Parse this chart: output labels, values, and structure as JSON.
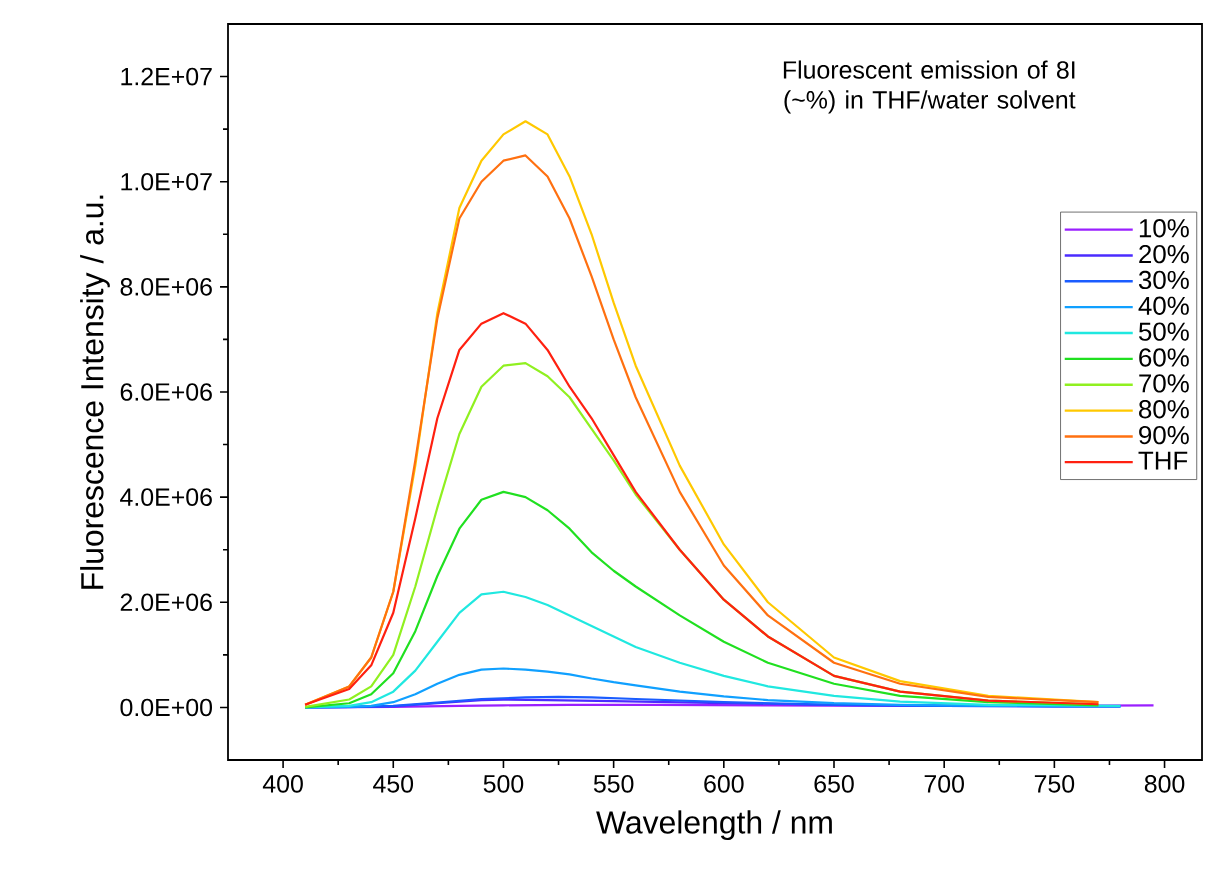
{
  "chart_data": {
    "type": "line",
    "title": "Fluorescent emission of 8I (~%) in THF/water solvent",
    "xlabel": "Wavelength / nm",
    "ylabel": "Fluorescence Intensity / a.u.",
    "xlim": [
      375,
      817
    ],
    "ylim": [
      -1000000,
      13000000
    ],
    "xticks": [
      400,
      450,
      500,
      550,
      600,
      650,
      700,
      750,
      800
    ],
    "yticks": [
      {
        "value": 0,
        "label": "0.0E+00"
      },
      {
        "value": 2000000,
        "label": "2.0E+06"
      },
      {
        "value": 4000000,
        "label": "4.0E+06"
      },
      {
        "value": 6000000,
        "label": "6.0E+06"
      },
      {
        "value": 8000000,
        "label": "8.0E+06"
      },
      {
        "value": 10000000,
        "label": "1.0E+07"
      },
      {
        "value": 12000000,
        "label": "1.2E+07"
      }
    ],
    "legend": "top right",
    "series": [
      {
        "name": "10%",
        "color": "#9a1fff",
        "x": [
          410,
          450,
          480,
          500,
          530,
          570,
          620,
          680,
          740,
          795
        ],
        "values": [
          0,
          10000,
          30000,
          40000,
          50000,
          50000,
          40000,
          30000,
          30000,
          40000
        ]
      },
      {
        "name": "20%",
        "color": "#4b2cff",
        "x": [
          410,
          450,
          470,
          490,
          500,
          520,
          550,
          600,
          650,
          700,
          750,
          780
        ],
        "values": [
          0,
          20000,
          80000,
          140000,
          150000,
          140000,
          120000,
          80000,
          50000,
          30000,
          20000,
          20000
        ]
      },
      {
        "name": "30%",
        "color": "#1a5cff",
        "x": [
          410,
          430,
          450,
          470,
          490,
          510,
          525,
          540,
          560,
          600,
          650,
          700,
          750,
          780
        ],
        "values": [
          0,
          5000,
          30000,
          90000,
          160000,
          190000,
          200000,
          190000,
          160000,
          100000,
          50000,
          30000,
          20000,
          20000
        ]
      },
      {
        "name": "40%",
        "color": "#10a0ff",
        "x": [
          410,
          430,
          440,
          450,
          460,
          470,
          480,
          490,
          500,
          510,
          520,
          530,
          540,
          550,
          560,
          580,
          600,
          620,
          650,
          680,
          720,
          780
        ],
        "values": [
          0,
          10000,
          30000,
          100000,
          250000,
          450000,
          620000,
          720000,
          740000,
          720000,
          680000,
          630000,
          550000,
          480000,
          420000,
          300000,
          210000,
          140000,
          80000,
          50000,
          30000,
          20000
        ]
      },
      {
        "name": "50%",
        "color": "#20e8e0",
        "x": [
          410,
          430,
          440,
          450,
          460,
          470,
          480,
          490,
          500,
          510,
          520,
          530,
          540,
          550,
          560,
          580,
          600,
          620,
          650,
          680,
          720,
          780
        ],
        "values": [
          0,
          30000,
          100000,
          300000,
          700000,
          1250000,
          1800000,
          2150000,
          2200000,
          2100000,
          1950000,
          1750000,
          1550000,
          1350000,
          1150000,
          850000,
          600000,
          400000,
          220000,
          110000,
          50000,
          30000
        ]
      },
      {
        "name": "60%",
        "color": "#20e020",
        "x": [
          410,
          430,
          440,
          450,
          460,
          470,
          480,
          490,
          500,
          510,
          520,
          530,
          540,
          550,
          560,
          580,
          600,
          620,
          650,
          680,
          720,
          770
        ],
        "values": [
          0,
          80000,
          250000,
          650000,
          1450000,
          2500000,
          3400000,
          3950000,
          4100000,
          4000000,
          3750000,
          3400000,
          2950000,
          2600000,
          2300000,
          1750000,
          1250000,
          850000,
          450000,
          220000,
          100000,
          40000
        ]
      },
      {
        "name": "70%",
        "color": "#90f020",
        "x": [
          410,
          430,
          440,
          450,
          460,
          470,
          480,
          490,
          500,
          510,
          520,
          530,
          540,
          550,
          560,
          580,
          600,
          620,
          650,
          680,
          720,
          770
        ],
        "values": [
          10000,
          150000,
          400000,
          1000000,
          2300000,
          3800000,
          5200000,
          6100000,
          6500000,
          6550000,
          6300000,
          5900000,
          5300000,
          4700000,
          4050000,
          3000000,
          2050000,
          1350000,
          600000,
          300000,
          130000,
          60000
        ]
      },
      {
        "name": "80%",
        "color": "#ffc800",
        "x": [
          410,
          430,
          440,
          450,
          460,
          470,
          480,
          490,
          500,
          510,
          520,
          530,
          540,
          550,
          560,
          580,
          600,
          620,
          650,
          680,
          720,
          770
        ],
        "values": [
          50000,
          400000,
          950000,
          2200000,
          4600000,
          7500000,
          9500000,
          10400000,
          10900000,
          11150000,
          10900000,
          10100000,
          9000000,
          7700000,
          6500000,
          4600000,
          3100000,
          2000000,
          950000,
          500000,
          220000,
          100000
        ]
      },
      {
        "name": "90%",
        "color": "#ff7010",
        "x": [
          410,
          430,
          440,
          450,
          460,
          470,
          480,
          490,
          500,
          510,
          520,
          530,
          540,
          550,
          560,
          580,
          600,
          620,
          650,
          680,
          720,
          770
        ],
        "values": [
          50000,
          400000,
          950000,
          2200000,
          4700000,
          7400000,
          9300000,
          10000000,
          10400000,
          10500000,
          10100000,
          9300000,
          8200000,
          7000000,
          5900000,
          4100000,
          2700000,
          1750000,
          850000,
          450000,
          200000,
          100000
        ]
      },
      {
        "name": "THF",
        "color": "#ff2010",
        "x": [
          410,
          430,
          440,
          450,
          460,
          470,
          480,
          490,
          500,
          510,
          520,
          530,
          540,
          550,
          560,
          580,
          600,
          620,
          650,
          680,
          720,
          770
        ],
        "values": [
          50000,
          350000,
          800000,
          1800000,
          3600000,
          5500000,
          6800000,
          7300000,
          7500000,
          7300000,
          6800000,
          6100000,
          5500000,
          4800000,
          4100000,
          3000000,
          2050000,
          1350000,
          600000,
          300000,
          130000,
          60000
        ]
      }
    ]
  }
}
